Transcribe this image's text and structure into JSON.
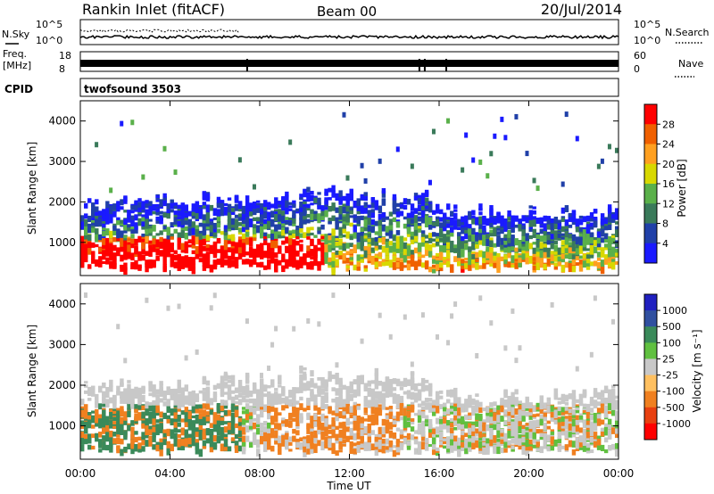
{
  "header": {
    "radar": "Rankin Inlet (fitACF)",
    "beam": "Beam 00",
    "date": "20/Jul/2014"
  },
  "noise_panel": {
    "left_label": "N.Sky",
    "right_label": "N.Search",
    "tick_top": "10^5",
    "tick_bottom": "10^0"
  },
  "freq_panel": {
    "left_label_1": "Freq.",
    "left_label_2": "[MHz]",
    "right_label": "Nave",
    "left_ticks": [
      "18",
      "8"
    ],
    "right_ticks": [
      "60",
      "0"
    ]
  },
  "cpid_panel": {
    "label": "CPID",
    "value": "twofsound 3503"
  },
  "x_axis": {
    "label": "Time UT",
    "ticks": [
      "00:00",
      "04:00",
      "08:00",
      "12:00",
      "16:00",
      "20:00",
      "00:00"
    ]
  },
  "colors": {
    "power_scale": [
      "#1a1aff",
      "#2040a8",
      "#3a7a5a",
      "#5ab04a",
      "#d8d800",
      "#ffa020",
      "#f06000",
      "#ff0000"
    ],
    "velocity_scale": [
      "#ff0000",
      "#e84010",
      "#f08020",
      "#ffc060",
      "#c8c8c8",
      "#60c040",
      "#3a8a5a",
      "#3050a0",
      "#2020c0"
    ]
  },
  "chart_data": [
    {
      "type": "heatmap",
      "title": "",
      "xlabel": "Time UT",
      "ylabel": "Slant Range [km]",
      "x_range": [
        "00:00",
        "00:00"
      ],
      "ylim": [
        180,
        4500
      ],
      "y_ticks": [
        1000,
        2000,
        3000,
        4000
      ],
      "colorbar": {
        "label": "Power [dB]",
        "ticks": [
          "28",
          "24",
          "20",
          "16",
          "12",
          "8",
          "4"
        ],
        "range": [
          0,
          30
        ]
      }
    },
    {
      "type": "heatmap",
      "title": "",
      "xlabel": "Time UT",
      "ylabel": "Slant Range [km]",
      "x_range": [
        "00:00",
        "00:00"
      ],
      "ylim": [
        180,
        4500
      ],
      "y_ticks": [
        1000,
        2000,
        3000,
        4000
      ],
      "colorbar": {
        "label": "Velocity [m s⁻¹]",
        "ticks": [
          "1000",
          "500",
          "100",
          "25",
          "-25",
          "-100",
          "-500",
          "-1000"
        ]
      }
    }
  ]
}
